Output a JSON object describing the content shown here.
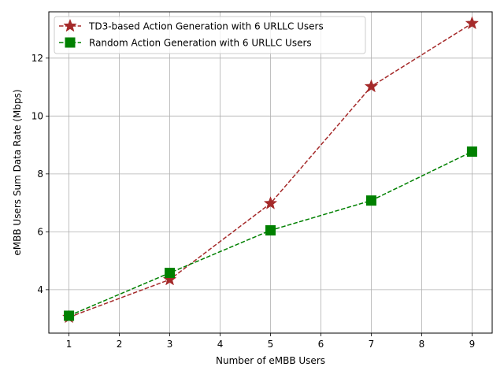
{
  "chart_data": {
    "type": "line",
    "title": "",
    "xlabel": "Number of eMBB Users",
    "ylabel": "eMBB Users Sum Data Rate (Mbps)",
    "xlim": [
      0.6,
      9.4
    ],
    "ylim": [
      2.5,
      13.6
    ],
    "x_ticks": [
      "1",
      "2",
      "3",
      "4",
      "5",
      "6",
      "7",
      "8",
      "9"
    ],
    "y_ticks": [
      "4",
      "6",
      "8",
      "10",
      "12"
    ],
    "grid": true,
    "legend_position": "top-left",
    "series": [
      {
        "name": "TD3-based Action Generation with 6 URLLC Users",
        "x": [
          1,
          3,
          5,
          7,
          9
        ],
        "values": [
          3.05,
          4.35,
          6.98,
          11.02,
          13.2
        ],
        "color": "#a52a2a",
        "marker": "star",
        "linestyle": "dashed"
      },
      {
        "name": "Random Action Generation with 6 URLLC Users",
        "x": [
          1,
          3,
          5,
          7,
          9
        ],
        "values": [
          3.1,
          4.58,
          6.05,
          7.08,
          8.77
        ],
        "color": "#008000",
        "marker": "square",
        "linestyle": "dashed"
      }
    ]
  }
}
